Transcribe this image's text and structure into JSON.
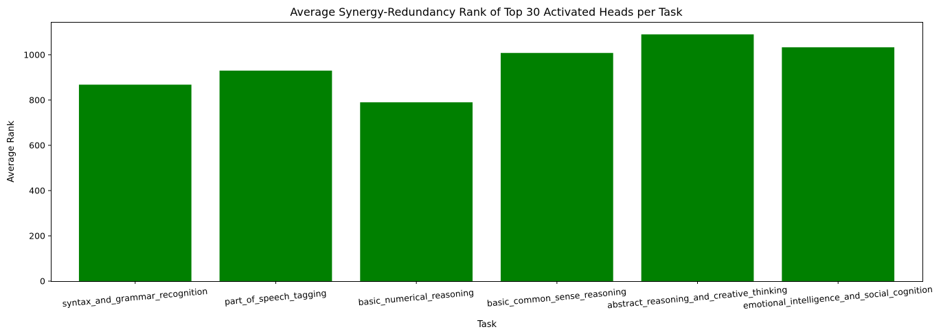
{
  "chart_data": {
    "type": "bar",
    "title": "Average Synergy-Redundancy Rank of Top 30 Activated Heads per Task",
    "xlabel": "Task",
    "ylabel": "Average Rank",
    "categories": [
      "syntax_and_grammar_recognition",
      "part_of_speech_tagging",
      "basic_numerical_reasoning",
      "basic_common_sense_reasoning",
      "abstract_reasoning_and_creative_thinking",
      "emotional_intelligence_and_social_cognition"
    ],
    "values": [
      868,
      930,
      790,
      1008,
      1090,
      1033
    ],
    "ylim": [
      0,
      1145
    ],
    "yticks": [
      0,
      200,
      400,
      600,
      800,
      1000
    ],
    "bar_color": "#008000",
    "grid": false,
    "legend": "none",
    "xtick_rotation_deg": -5
  }
}
